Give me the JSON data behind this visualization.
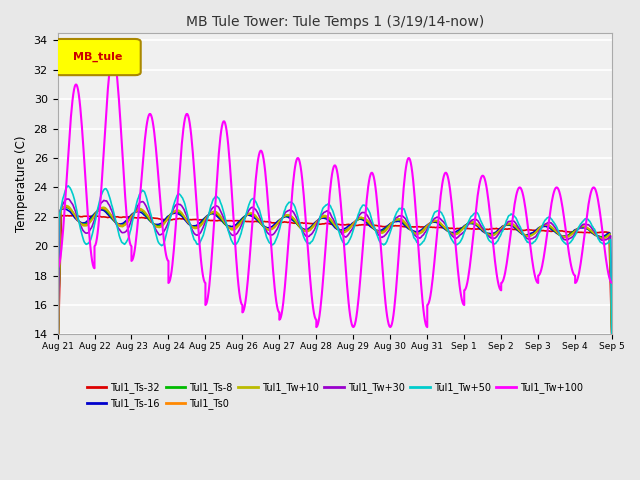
{
  "title": "MB Tule Tower: Tule Temps 1 (3/19/14-now)",
  "ylabel": "Temperature (C)",
  "ylim": [
    14,
    34.5
  ],
  "yticks": [
    14,
    16,
    18,
    20,
    22,
    24,
    26,
    28,
    30,
    32,
    34
  ],
  "legend_box_label": "MB_tule",
  "legend_box_color": "#ffff00",
  "legend_box_border": "#aa8800",
  "legend_box_text_color": "#cc0000",
  "series": [
    {
      "label": "Tul1_Ts-32",
      "color": "#dd0000",
      "lw": 1.2
    },
    {
      "label": "Tul1_Ts-16",
      "color": "#0000cc",
      "lw": 1.2
    },
    {
      "label": "Tul1_Ts-8",
      "color": "#00bb00",
      "lw": 1.2
    },
    {
      "label": "Tul1_Ts0",
      "color": "#ff8800",
      "lw": 1.2
    },
    {
      "label": "Tul1_Tw+10",
      "color": "#bbbb00",
      "lw": 1.2
    },
    {
      "label": "Tul1_Tw+30",
      "color": "#9900cc",
      "lw": 1.2
    },
    {
      "label": "Tul1_Tw+50",
      "color": "#00cccc",
      "lw": 1.2
    },
    {
      "label": "Tul1_Tw+100",
      "color": "#ff00ff",
      "lw": 1.5
    }
  ],
  "day_labels": [
    "Aug 21",
    "Aug 22",
    "Aug 23",
    "Aug 24",
    "Aug 25",
    "Aug 26",
    "Aug 27",
    "Aug 28",
    "Aug 29",
    "Aug 30",
    "Aug 31",
    "Sep 1",
    "Sep 2",
    "Sep 3",
    "Sep 4",
    "Sep 5"
  ],
  "background_color": "#e8e8e8",
  "plot_bg": "#f0f0f0",
  "grid_color": "#ffffff",
  "title_fontsize": 10,
  "figsize": [
    6.4,
    4.8
  ],
  "dpi": 100
}
